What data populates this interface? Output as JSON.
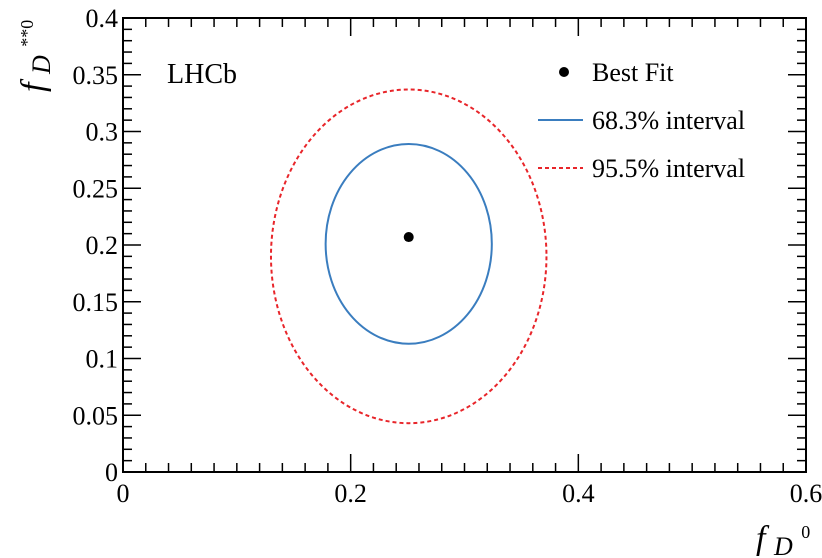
{
  "chart_data": {
    "type": "scatter",
    "experiment_label": "LHCb",
    "xlabel": {
      "main": "f",
      "sub": "D",
      "sup": "0"
    },
    "ylabel": {
      "main": "f",
      "sub": "D",
      "sup": "**0"
    },
    "xlim": [
      0,
      0.6
    ],
    "ylim": [
      0,
      0.4
    ],
    "x_ticks": [
      0,
      0.2,
      0.4,
      0.6
    ],
    "x_tick_labels": [
      "0",
      "0.2",
      "0.4",
      "0.6"
    ],
    "y_ticks": [
      0,
      0.05,
      0.1,
      0.15,
      0.2,
      0.25,
      0.3,
      0.35,
      0.4
    ],
    "y_tick_labels": [
      "0",
      "0.05",
      "0.1",
      "0.15",
      "0.2",
      "0.25",
      "0.3",
      "0.35",
      "0.4"
    ],
    "grid": false,
    "legend_position": "top-right",
    "series": [
      {
        "name": "Best Fit",
        "kind": "point",
        "color": "#000000",
        "points": [
          {
            "x": 0.251,
            "y": 0.207
          }
        ]
      },
      {
        "name": "68.3% interval",
        "kind": "contour",
        "color": "#3a7dbf",
        "dash": "solid",
        "center": [
          0.251,
          0.201
        ],
        "x_range": [
          0.178,
          0.324
        ],
        "y_range": [
          0.113,
          0.289
        ]
      },
      {
        "name": "95.5% interval",
        "kind": "contour",
        "color": "#e8252a",
        "dash": "dotted",
        "center": [
          0.251,
          0.19
        ],
        "x_range": [
          0.13,
          0.372
        ],
        "y_range": [
          0.043,
          0.337
        ]
      }
    ]
  }
}
